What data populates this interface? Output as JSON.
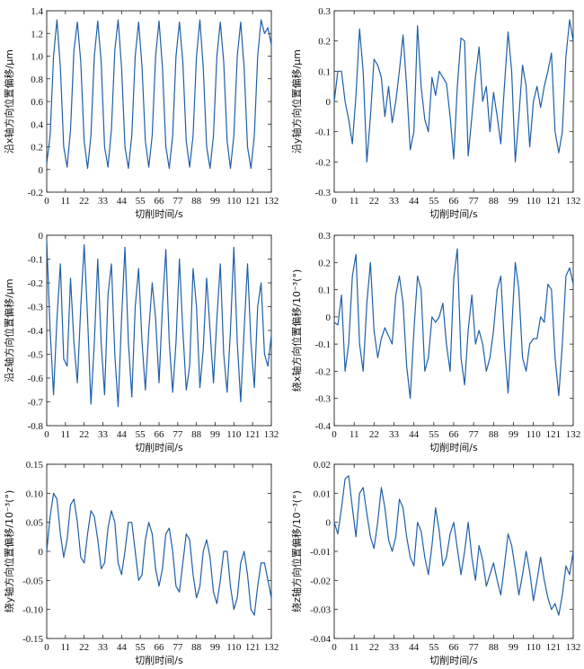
{
  "figure": {
    "line_color": "#1f5fa8"
  },
  "chart_data": [
    {
      "type": "line",
      "xlabel": "切削时间/s",
      "ylabel": "沿x轴方向位置偏移/μm",
      "xlim": [
        0,
        132
      ],
      "ylim": [
        -0.2,
        1.4
      ],
      "xticks": [
        0,
        11,
        22,
        33,
        44,
        55,
        66,
        77,
        88,
        99,
        110,
        121,
        132
      ],
      "yticks": [
        "-0.2",
        "0",
        "0.2",
        "0.4",
        "0.6",
        "0.8",
        "1.0",
        "1.2",
        "1.4"
      ],
      "series": [
        {
          "x": [
            0,
            2,
            4,
            6,
            8,
            10,
            12,
            14,
            16,
            18,
            20,
            22,
            24,
            26,
            28,
            30,
            32,
            34,
            36,
            38,
            40,
            42,
            44,
            46,
            48,
            50,
            52,
            54,
            56,
            58,
            60,
            62,
            64,
            66,
            68,
            70,
            72,
            74,
            76,
            78,
            80,
            82,
            84,
            86,
            88,
            90,
            92,
            94,
            96,
            98,
            100,
            102,
            104,
            106,
            108,
            110,
            112,
            114,
            116,
            118,
            120,
            122,
            124,
            126,
            128,
            130,
            132
          ],
          "y": [
            0.05,
            0.3,
            1.0,
            1.32,
            0.9,
            0.2,
            0.02,
            0.35,
            1.05,
            1.3,
            0.95,
            0.25,
            0.01,
            0.3,
            1.0,
            1.31,
            0.95,
            0.2,
            0.02,
            0.35,
            1.05,
            1.32,
            0.9,
            0.2,
            0.01,
            0.3,
            1.0,
            1.3,
            0.9,
            0.25,
            0.02,
            0.3,
            1.0,
            1.31,
            0.9,
            0.2,
            0.01,
            0.3,
            1.0,
            1.3,
            0.95,
            0.25,
            0.02,
            0.3,
            1.0,
            1.32,
            0.9,
            0.2,
            0.01,
            0.3,
            1.0,
            1.3,
            0.95,
            0.25,
            0.01,
            0.3,
            1.0,
            1.3,
            0.9,
            0.2,
            0.01,
            0.3,
            1.0,
            1.32,
            1.2,
            1.25,
            1.1
          ]
        }
      ]
    },
    {
      "type": "line",
      "xlabel": "切削时间/s",
      "ylabel": "沿y轴方向位置偏移/μm",
      "xlim": [
        0,
        132
      ],
      "ylim": [
        -0.3,
        0.3
      ],
      "xticks": [
        0,
        11,
        22,
        33,
        44,
        55,
        66,
        77,
        88,
        99,
        110,
        121,
        132
      ],
      "yticks": [
        "-0.3",
        "-0.2",
        "-0.1",
        "0",
        "0.1",
        "0.2",
        "0.3"
      ],
      "series": [
        {
          "x": [
            0,
            2,
            4,
            6,
            8,
            10,
            12,
            14,
            16,
            18,
            20,
            22,
            24,
            26,
            28,
            30,
            32,
            34,
            36,
            38,
            40,
            42,
            44,
            46,
            48,
            50,
            52,
            54,
            56,
            58,
            60,
            62,
            64,
            66,
            68,
            70,
            72,
            74,
            76,
            78,
            80,
            82,
            84,
            86,
            88,
            90,
            92,
            94,
            96,
            98,
            100,
            102,
            104,
            106,
            108,
            110,
            112,
            114,
            116,
            118,
            120,
            122,
            124,
            126,
            128,
            130,
            132
          ],
          "y": [
            0.0,
            0.1,
            0.1,
            0.0,
            -0.06,
            -0.14,
            0.02,
            0.24,
            0.1,
            -0.2,
            -0.05,
            0.14,
            0.12,
            0.08,
            -0.05,
            0.05,
            -0.07,
            0.0,
            0.1,
            0.22,
            0.05,
            -0.16,
            -0.1,
            0.25,
            0.05,
            -0.06,
            -0.1,
            0.08,
            0.02,
            0.1,
            0.08,
            0.06,
            -0.05,
            -0.19,
            0.05,
            0.21,
            0.2,
            -0.18,
            -0.05,
            0.08,
            0.18,
            0.0,
            0.05,
            -0.1,
            0.03,
            -0.05,
            -0.14,
            0.05,
            0.23,
            0.1,
            -0.2,
            -0.05,
            0.12,
            0.05,
            -0.15,
            0.0,
            0.05,
            -0.02,
            0.05,
            0.1,
            0.16,
            -0.1,
            -0.17,
            -0.1,
            0.15,
            0.27,
            0.2
          ]
        }
      ]
    },
    {
      "type": "line",
      "xlabel": "切削时间/s",
      "ylabel": "沿z轴方向位置偏移/μm",
      "xlim": [
        0,
        132
      ],
      "ylim": [
        -0.8,
        0
      ],
      "xticks": [
        0,
        11,
        22,
        33,
        44,
        55,
        66,
        77,
        88,
        99,
        110,
        121,
        132
      ],
      "yticks": [
        "-0.8",
        "-0.7",
        "-0.6",
        "-0.5",
        "-0.4",
        "-0.3",
        "-0.2",
        "-0.1",
        "0"
      ],
      "series": [
        {
          "x": [
            0,
            2,
            4,
            6,
            8,
            10,
            12,
            14,
            16,
            18,
            20,
            22,
            24,
            26,
            28,
            30,
            32,
            34,
            36,
            38,
            40,
            42,
            44,
            46,
            48,
            50,
            52,
            54,
            56,
            58,
            60,
            62,
            64,
            66,
            68,
            70,
            72,
            74,
            76,
            78,
            80,
            82,
            84,
            86,
            88,
            90,
            92,
            94,
            96,
            98,
            100,
            102,
            104,
            106,
            108,
            110,
            112,
            114,
            116,
            118,
            120,
            122,
            124,
            126,
            128,
            130,
            132
          ],
          "y": [
            -0.02,
            -0.4,
            -0.67,
            -0.35,
            -0.12,
            -0.52,
            -0.55,
            -0.18,
            -0.45,
            -0.62,
            -0.3,
            -0.04,
            -0.35,
            -0.71,
            -0.45,
            -0.1,
            -0.45,
            -0.67,
            -0.25,
            -0.12,
            -0.5,
            -0.72,
            -0.35,
            -0.05,
            -0.45,
            -0.68,
            -0.3,
            -0.14,
            -0.45,
            -0.65,
            -0.4,
            -0.2,
            -0.35,
            -0.62,
            -0.3,
            -0.06,
            -0.45,
            -0.66,
            -0.45,
            -0.1,
            -0.4,
            -0.65,
            -0.55,
            -0.14,
            -0.3,
            -0.64,
            -0.48,
            -0.18,
            -0.4,
            -0.62,
            -0.35,
            -0.12,
            -0.5,
            -0.66,
            -0.4,
            -0.05,
            -0.45,
            -0.7,
            -0.4,
            -0.12,
            -0.45,
            -0.64,
            -0.3,
            -0.2,
            -0.5,
            -0.55,
            -0.42
          ]
        }
      ]
    },
    {
      "type": "line",
      "xlabel": "切削时间/s",
      "ylabel": "绕x轴方向位置偏移/10⁻³(°)",
      "xlim": [
        0,
        132
      ],
      "ylim": [
        -0.4,
        0.3
      ],
      "xticks": [
        0,
        11,
        22,
        33,
        44,
        55,
        66,
        77,
        88,
        99,
        110,
        121,
        132
      ],
      "yticks": [
        "-0.4",
        "-0.3",
        "-0.2",
        "-0.1",
        "0",
        "0.1",
        "0.2",
        "0.3"
      ],
      "series": [
        {
          "x": [
            0,
            2,
            4,
            6,
            8,
            10,
            12,
            14,
            16,
            18,
            20,
            22,
            24,
            26,
            28,
            30,
            32,
            34,
            36,
            38,
            40,
            42,
            44,
            46,
            48,
            50,
            52,
            54,
            56,
            58,
            60,
            62,
            64,
            66,
            68,
            70,
            72,
            74,
            76,
            78,
            80,
            82,
            84,
            86,
            88,
            90,
            92,
            94,
            96,
            98,
            100,
            102,
            104,
            106,
            108,
            110,
            112,
            114,
            116,
            118,
            120,
            122,
            124,
            126,
            128,
            130,
            132
          ],
          "y": [
            -0.02,
            -0.03,
            0.08,
            -0.2,
            -0.1,
            0.15,
            0.23,
            -0.1,
            -0.2,
            0.05,
            0.2,
            -0.05,
            -0.15,
            -0.08,
            -0.04,
            -0.07,
            -0.1,
            0.08,
            0.15,
            0.05,
            -0.18,
            -0.3,
            -0.05,
            0.15,
            0.1,
            -0.2,
            -0.15,
            0.0,
            -0.02,
            0.0,
            0.05,
            -0.1,
            -0.2,
            0.14,
            0.25,
            -0.15,
            -0.25,
            -0.05,
            0.08,
            -0.1,
            -0.05,
            -0.1,
            -0.2,
            -0.15,
            -0.05,
            0.1,
            0.15,
            -0.1,
            -0.28,
            -0.05,
            0.2,
            0.1,
            -0.15,
            -0.2,
            -0.1,
            -0.08,
            -0.08,
            0.0,
            -0.02,
            0.12,
            0.1,
            -0.15,
            -0.29,
            -0.1,
            0.15,
            0.18,
            0.12
          ]
        }
      ]
    },
    {
      "type": "line",
      "xlabel": "切削时间/s",
      "ylabel": "绕y轴方向位置偏移/10⁻³(°)",
      "xlim": [
        0,
        132
      ],
      "ylim": [
        -0.15,
        0.15
      ],
      "xticks": [
        0,
        11,
        22,
        33,
        44,
        55,
        66,
        77,
        88,
        99,
        110,
        121,
        132
      ],
      "yticks": [
        "-0.15",
        "-0.10",
        "-0.05",
        "0",
        "0.05",
        "0.10",
        "0.15"
      ],
      "series": [
        {
          "x": [
            0,
            2,
            4,
            6,
            8,
            10,
            12,
            14,
            16,
            18,
            20,
            22,
            24,
            26,
            28,
            30,
            32,
            34,
            36,
            38,
            40,
            42,
            44,
            46,
            48,
            50,
            52,
            54,
            56,
            58,
            60,
            62,
            64,
            66,
            68,
            70,
            72,
            74,
            76,
            78,
            80,
            82,
            84,
            86,
            88,
            90,
            92,
            94,
            96,
            98,
            100,
            102,
            104,
            106,
            108,
            110,
            112,
            114,
            116,
            118,
            120,
            122,
            124,
            126,
            128,
            130,
            132
          ],
          "y": [
            0.0,
            0.06,
            0.1,
            0.09,
            0.03,
            -0.01,
            0.02,
            0.08,
            0.09,
            0.05,
            -0.01,
            -0.02,
            0.03,
            0.07,
            0.06,
            0.02,
            -0.03,
            -0.02,
            0.04,
            0.07,
            0.05,
            -0.02,
            -0.04,
            0.0,
            0.05,
            0.05,
            0.0,
            -0.05,
            -0.04,
            0.02,
            0.05,
            0.03,
            -0.03,
            -0.06,
            -0.03,
            0.03,
            0.04,
            0.0,
            -0.06,
            -0.07,
            -0.02,
            0.03,
            0.02,
            -0.04,
            -0.08,
            -0.06,
            0.0,
            0.02,
            -0.01,
            -0.07,
            -0.09,
            -0.05,
            0.0,
            0.0,
            -0.06,
            -0.1,
            -0.08,
            -0.02,
            0.0,
            -0.04,
            -0.1,
            -0.11,
            -0.06,
            -0.02,
            -0.02,
            -0.05,
            -0.08
          ]
        }
      ]
    },
    {
      "type": "line",
      "xlabel": "切削时间/s",
      "ylabel": "绕z轴方向位置偏移/10⁻³(°)",
      "xlim": [
        0,
        132
      ],
      "ylim": [
        -0.04,
        0.02
      ],
      "xticks": [
        0,
        11,
        22,
        33,
        44,
        55,
        66,
        77,
        88,
        99,
        110,
        121,
        132
      ],
      "yticks": [
        "-0.04",
        "-0.03",
        "-0.02",
        "-0.01",
        "0",
        "0.01",
        "0.02"
      ],
      "series": [
        {
          "x": [
            0,
            2,
            4,
            6,
            8,
            10,
            12,
            14,
            16,
            18,
            20,
            22,
            24,
            26,
            28,
            30,
            32,
            34,
            36,
            38,
            40,
            42,
            44,
            46,
            48,
            50,
            52,
            54,
            56,
            58,
            60,
            62,
            64,
            66,
            68,
            70,
            72,
            74,
            76,
            78,
            80,
            82,
            84,
            86,
            88,
            90,
            92,
            94,
            96,
            98,
            100,
            102,
            104,
            106,
            108,
            110,
            112,
            114,
            116,
            118,
            120,
            122,
            124,
            126,
            128,
            130,
            132
          ],
          "y": [
            0.0,
            -0.004,
            0.005,
            0.015,
            0.016,
            0.005,
            -0.005,
            0.01,
            0.012,
            0.003,
            -0.005,
            -0.009,
            0.0,
            0.012,
            0.005,
            -0.006,
            -0.01,
            -0.005,
            0.008,
            0.005,
            -0.005,
            -0.012,
            -0.015,
            0.0,
            -0.003,
            -0.012,
            -0.018,
            -0.008,
            0.005,
            -0.003,
            -0.015,
            -0.012,
            -0.004,
            0.0,
            -0.009,
            -0.018,
            -0.01,
            0.0,
            -0.012,
            -0.02,
            -0.008,
            -0.013,
            -0.022,
            -0.018,
            -0.014,
            -0.02,
            -0.025,
            -0.015,
            -0.004,
            -0.008,
            -0.016,
            -0.025,
            -0.018,
            -0.01,
            -0.017,
            -0.027,
            -0.02,
            -0.012,
            -0.02,
            -0.026,
            -0.03,
            -0.028,
            -0.032,
            -0.025,
            -0.015,
            -0.018,
            -0.01
          ]
        }
      ]
    }
  ]
}
